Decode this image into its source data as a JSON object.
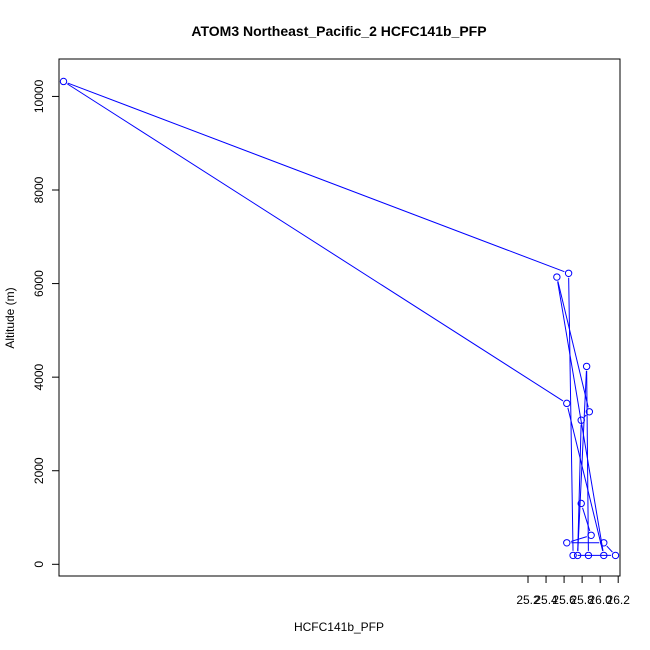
{
  "chart_data": {
    "type": "line",
    "title": "ATOM3 Northeast_Pacific_2 HCFC141b_PFP",
    "xlabel": "HCFC141b_PFP",
    "ylabel": "Altitude (m)",
    "xlim": [
      20.0,
      26.22
    ],
    "ylim": [
      -250,
      10800
    ],
    "xticks": [
      25.2,
      25.4,
      25.6,
      25.8,
      26.0,
      26.2
    ],
    "xtick_labels": [
      "25.2",
      "25.4",
      "25.6",
      "25.8",
      "26.0",
      "26.2"
    ],
    "yticks": [
      0,
      2000,
      4000,
      6000,
      8000,
      10000
    ],
    "ytick_labels": [
      "0",
      "2000",
      "4000",
      "6000",
      "8000",
      "10000"
    ],
    "grid": false,
    "series": [
      {
        "color": "#0000ff",
        "x": [
          25.79,
          25.9,
          25.63,
          26.04,
          26.17,
          25.7,
          25.65,
          20.05,
          25.63,
          26.04,
          25.52,
          25.88,
          25.79,
          25.75,
          25.85,
          25.87
        ],
        "y": [
          1300,
          620,
          460,
          460,
          190,
          190,
          6220,
          10320,
          3440,
          190,
          6140,
          3260,
          3080,
          190,
          4230,
          190
        ]
      }
    ]
  }
}
